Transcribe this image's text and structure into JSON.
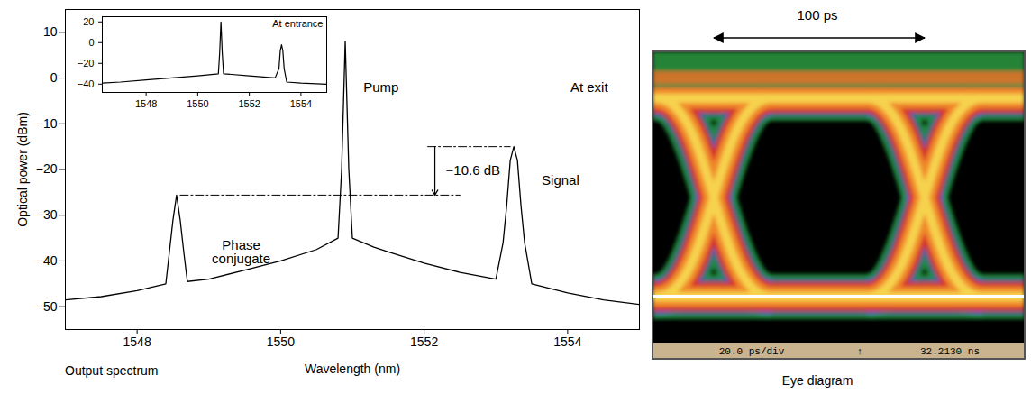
{
  "chart_data": [
    {
      "type": "line",
      "title": "Output spectrum",
      "x_label": "Wavelength (nm)",
      "y_label": "Optical power (dBm)",
      "color": "#000000",
      "x": [
        1547,
        1547.5,
        1548,
        1548.4,
        1548.45,
        1548.5,
        1548.55,
        1548.6,
        1548.65,
        1548.7,
        1549,
        1549.5,
        1550,
        1550.5,
        1550.8,
        1550.85,
        1550.9,
        1550.95,
        1551,
        1551.3,
        1551.5,
        1552,
        1552.5,
        1553,
        1553.1,
        1553.15,
        1553.2,
        1553.25,
        1553.3,
        1553.35,
        1553.4,
        1553.5,
        1554,
        1554.5,
        1555
      ],
      "values": [
        -48.5,
        -47.8,
        -46.5,
        -45,
        -38,
        -31,
        -25.6,
        -31,
        -38,
        -44.5,
        -44,
        -42,
        -40,
        -37.5,
        -35,
        -20,
        8,
        -20,
        -35,
        -37,
        -38,
        -40.5,
        -42.5,
        -44,
        -36,
        -28,
        -18,
        -15,
        -18,
        -28,
        -36,
        -45,
        -47,
        -48.5,
        -49.5
      ],
      "xlim": [
        1547,
        1555
      ],
      "xticks": [
        1548,
        1550,
        1552,
        1554
      ],
      "ylim": [
        -55,
        15
      ],
      "yticks": [
        -50,
        -40,
        -30,
        -20,
        -10,
        0,
        10
      ],
      "grid": false,
      "annotations": [
        {
          "text": "Pump",
          "x": 1551.4,
          "y": -2
        },
        {
          "text": "At exit",
          "x": 1554.3,
          "y": -2
        },
        {
          "text": "Signal",
          "x": 1553.9,
          "y": -22.5
        },
        {
          "text": "Phase\nconjugate",
          "x": 1549.45,
          "y": -38
        }
      ],
      "level_difference": {
        "label": "−10.6 dB",
        "upper": -15,
        "lower": -25.6,
        "upper_x": [
          1552.05,
          1553.2
        ],
        "lower_x": [
          1548.6,
          1552.5
        ],
        "arrow_x": 1552.15,
        "label_x": 1552.68
      }
    },
    {
      "type": "line",
      "title": "At entrance",
      "color": "#000000",
      "x": [
        1546.3,
        1547,
        1548,
        1549,
        1550,
        1550.8,
        1550.85,
        1550.9,
        1550.95,
        1551,
        1552,
        1553,
        1553.15,
        1553.2,
        1553.25,
        1553.3,
        1553.35,
        1553.45,
        1554,
        1555
      ],
      "values": [
        -39,
        -38,
        -36,
        -34,
        -32,
        -30,
        -10,
        20,
        -10,
        -30,
        -32,
        -34,
        -25,
        -8,
        -2,
        -8,
        -25,
        -38,
        -39,
        -40
      ],
      "xlim": [
        1546.3,
        1555
      ],
      "xticks": [
        1548,
        1550,
        1552,
        1554
      ],
      "ylim": [
        -48,
        25
      ],
      "yticks": [
        -40,
        -20,
        0,
        20
      ],
      "grid": false
    },
    {
      "type": "eye_diagram",
      "title": "Eye diagram",
      "span_label": "100 ps",
      "footer": [
        "20.0 ps/div",
        "↑",
        "32.2130 ns"
      ]
    }
  ]
}
